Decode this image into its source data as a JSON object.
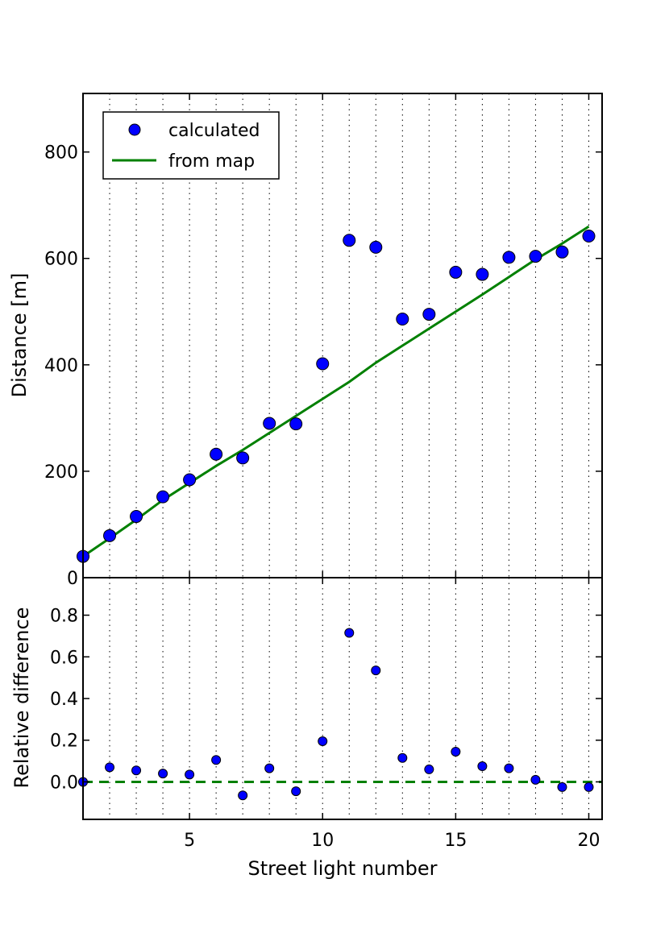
{
  "chart_data": [
    {
      "type": "scatter",
      "title": "",
      "xlabel": "",
      "ylabel": "Distance [m]",
      "xlim": [
        1,
        20.5
      ],
      "ylim": [
        0,
        910
      ],
      "yticks": [
        0,
        200,
        400,
        600,
        800
      ],
      "grid": "vertical dotted lines at each street light",
      "legend": {
        "placement": "top-left"
      },
      "series": [
        {
          "name": "calculated",
          "kind": "points",
          "color": "#0000ff",
          "x": [
            1,
            2,
            3,
            4,
            5,
            6,
            7,
            8,
            9,
            10,
            11,
            12,
            13,
            14,
            15,
            16,
            17,
            18,
            19,
            20
          ],
          "y": [
            40,
            79,
            115,
            152,
            184,
            232,
            225,
            290,
            289,
            402,
            634,
            621,
            486,
            495,
            574,
            570,
            602,
            604,
            612,
            642
          ]
        },
        {
          "name": "from map",
          "kind": "line",
          "color": "#008000",
          "x": [
            1,
            2,
            3,
            4,
            5,
            6,
            7,
            8,
            9,
            10,
            11,
            12,
            13,
            14,
            15,
            16,
            17,
            18,
            19,
            20
          ],
          "y": [
            40,
            74,
            109,
            146,
            178,
            210,
            240,
            272,
            304,
            336,
            368,
            404,
            436,
            468,
            500,
            532,
            565,
            598,
            628,
            660
          ]
        }
      ]
    },
    {
      "type": "scatter",
      "title": "",
      "xlabel": "Street light number",
      "ylabel": "Relative difference",
      "xlim": [
        1,
        20.5
      ],
      "ylim": [
        -0.18,
        0.98
      ],
      "xticks": [
        5,
        10,
        15,
        20
      ],
      "yticks": [
        0.0,
        0.2,
        0.4,
        0.6,
        0.8
      ],
      "grid": "vertical dotted lines at each street light",
      "series": [
        {
          "name": "",
          "kind": "points",
          "color": "#0000ff",
          "x": [
            1,
            2,
            3,
            4,
            5,
            6,
            7,
            8,
            9,
            10,
            11,
            12,
            13,
            14,
            15,
            16,
            17,
            18,
            19,
            20
          ],
          "y": [
            0.0,
            0.07,
            0.055,
            0.04,
            0.035,
            0.105,
            -0.065,
            0.065,
            -0.045,
            0.195,
            0.715,
            0.535,
            0.115,
            0.06,
            0.145,
            0.075,
            0.065,
            0.01,
            -0.025,
            -0.025
          ]
        },
        {
          "name": "",
          "kind": "reference-line",
          "color": "#008000",
          "y": 0
        }
      ]
    }
  ]
}
